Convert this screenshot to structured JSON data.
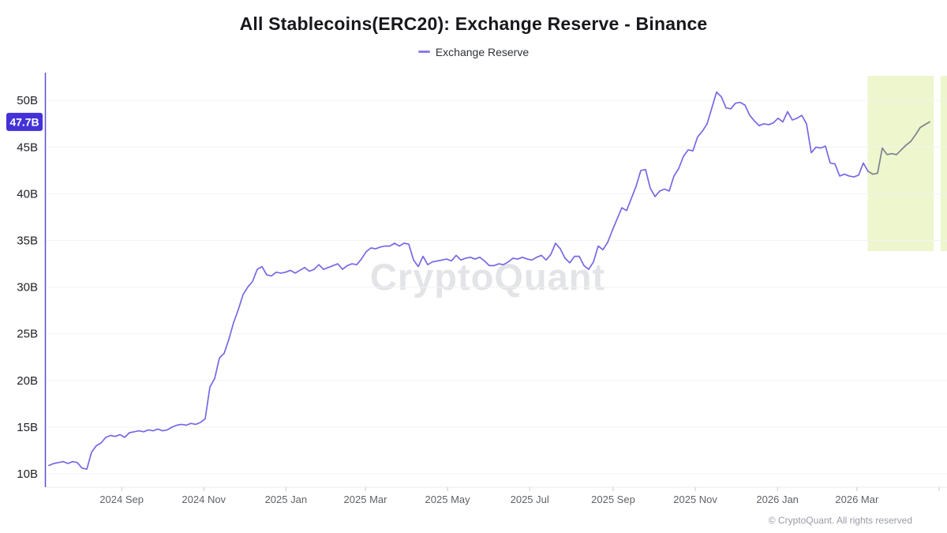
{
  "header": {
    "title": "All Stablecoins(ERC20): Exchange Reserve - Binance"
  },
  "legend": {
    "label": "Exchange Reserve",
    "color": "#8d7ce8"
  },
  "badge": {
    "label": "47.7B",
    "bg": "#4432d8",
    "text_color": "#ffffff"
  },
  "watermark": {
    "text": "CryptoQuant"
  },
  "footer": {
    "text": "© CryptoQuant. All rights reserved"
  },
  "chart_data": {
    "type": "line",
    "title": "All Stablecoins(ERC20): Exchange Reserve - Binance",
    "series_name": "Exchange Reserve",
    "unit": "billions (B)",
    "ylim": [
      10,
      50
    ],
    "x_start_date": "2024-07-09",
    "x_end_date": "2026-04-24",
    "current_value": 47.7,
    "grid": "horizontal-only",
    "legend_position": "top-center",
    "y_ticks": [
      {
        "value": 10,
        "label": "10B"
      },
      {
        "value": 15,
        "label": "15B"
      },
      {
        "value": 20,
        "label": "20B"
      },
      {
        "value": 25,
        "label": "25B"
      },
      {
        "value": 30,
        "label": "30B"
      },
      {
        "value": 35,
        "label": "35B"
      },
      {
        "value": 40,
        "label": "40B"
      },
      {
        "value": 45,
        "label": "45B"
      },
      {
        "value": 50,
        "label": "50B"
      }
    ],
    "x_ticks": [
      {
        "date": "2024-09-01",
        "label": "2024 Sep"
      },
      {
        "date": "2024-11-01",
        "label": "2024 Nov"
      },
      {
        "date": "2025-01-01",
        "label": "2025 Jan"
      },
      {
        "date": "2025-03-01",
        "label": "2025 Mar"
      },
      {
        "date": "2025-05-01",
        "label": "2025 May"
      },
      {
        "date": "2025-07-01",
        "label": "2025 Jul"
      },
      {
        "date": "2025-09-01",
        "label": "2025 Sep"
      },
      {
        "date": "2025-11-01",
        "label": "2025 Nov"
      },
      {
        "date": "2026-01-01",
        "label": "2026 Jan"
      },
      {
        "date": "2026-03-01",
        "label": "2026 Mar"
      },
      {
        "date": "2026-05-01",
        "label": ""
      }
    ],
    "highlight_regions": [
      {
        "from": "2026-03-09",
        "to": "2026-04-27"
      },
      {
        "from": "2026-05-02",
        "to": "2026-05-10"
      }
    ],
    "values": [
      10.9,
      11.1,
      11.2,
      11.3,
      11.1,
      11.3,
      11.2,
      10.6,
      10.5,
      12.3,
      13.0,
      13.3,
      13.9,
      14.1,
      14.0,
      14.2,
      13.9,
      14.4,
      14.5,
      14.6,
      14.5,
      14.7,
      14.6,
      14.8,
      14.6,
      14.7,
      15.0,
      15.2,
      15.3,
      15.2,
      15.4,
      15.3,
      15.5,
      15.9,
      19.3,
      20.2,
      22.4,
      22.9,
      24.4,
      26.2,
      27.6,
      29.2,
      30.0,
      30.6,
      31.9,
      32.2,
      31.3,
      31.2,
      31.6,
      31.5,
      31.6,
      31.8,
      31.5,
      31.8,
      32.1,
      31.7,
      31.9,
      32.4,
      31.9,
      32.1,
      32.3,
      32.5,
      31.9,
      32.3,
      32.5,
      32.4,
      33.0,
      33.8,
      34.2,
      34.1,
      34.3,
      34.4,
      34.4,
      34.7,
      34.4,
      34.7,
      34.6,
      32.9,
      32.2,
      33.3,
      32.4,
      32.7,
      32.8,
      32.9,
      33.0,
      32.8,
      33.4,
      32.9,
      33.1,
      33.2,
      33.0,
      33.2,
      32.8,
      32.3,
      32.3,
      32.5,
      32.4,
      32.7,
      33.1,
      33.0,
      33.2,
      33.0,
      32.9,
      33.2,
      33.4,
      32.9,
      33.5,
      34.7,
      34.1,
      33.1,
      32.6,
      33.3,
      33.3,
      32.3,
      31.9,
      32.7,
      34.4,
      34.0,
      34.8,
      36.1,
      37.3,
      38.5,
      38.2,
      39.5,
      40.8,
      42.5,
      42.6,
      40.6,
      39.7,
      40.3,
      40.5,
      40.3,
      41.9,
      42.7,
      44.0,
      44.7,
      44.6,
      46.1,
      46.7,
      47.5,
      49.2,
      50.9,
      50.4,
      49.2,
      49.1,
      49.7,
      49.8,
      49.5,
      48.4,
      47.8,
      47.3,
      47.5,
      47.4,
      47.6,
      48.1,
      47.7,
      48.8,
      47.9,
      48.1,
      48.4,
      47.5,
      44.4,
      45.0,
      44.9,
      45.1,
      43.3,
      43.2,
      41.9,
      42.1,
      41.9,
      41.8,
      42.0,
      43.3,
      42.4,
      42.1,
      42.2,
      44.9,
      44.2,
      44.3,
      44.2,
      44.7,
      45.2,
      45.6,
      46.3,
      47.1,
      47.4,
      47.7
    ],
    "colors": {
      "line": "#7668e4",
      "line_in_highlight": "#7c818e",
      "highlight_fill": "#edf6cd",
      "axis": "#5a4fd8",
      "grid": "#f2f2f4",
      "tick_mark": "#c9c9d0",
      "x_label": "#5f6368",
      "y_label": "#202227"
    }
  }
}
